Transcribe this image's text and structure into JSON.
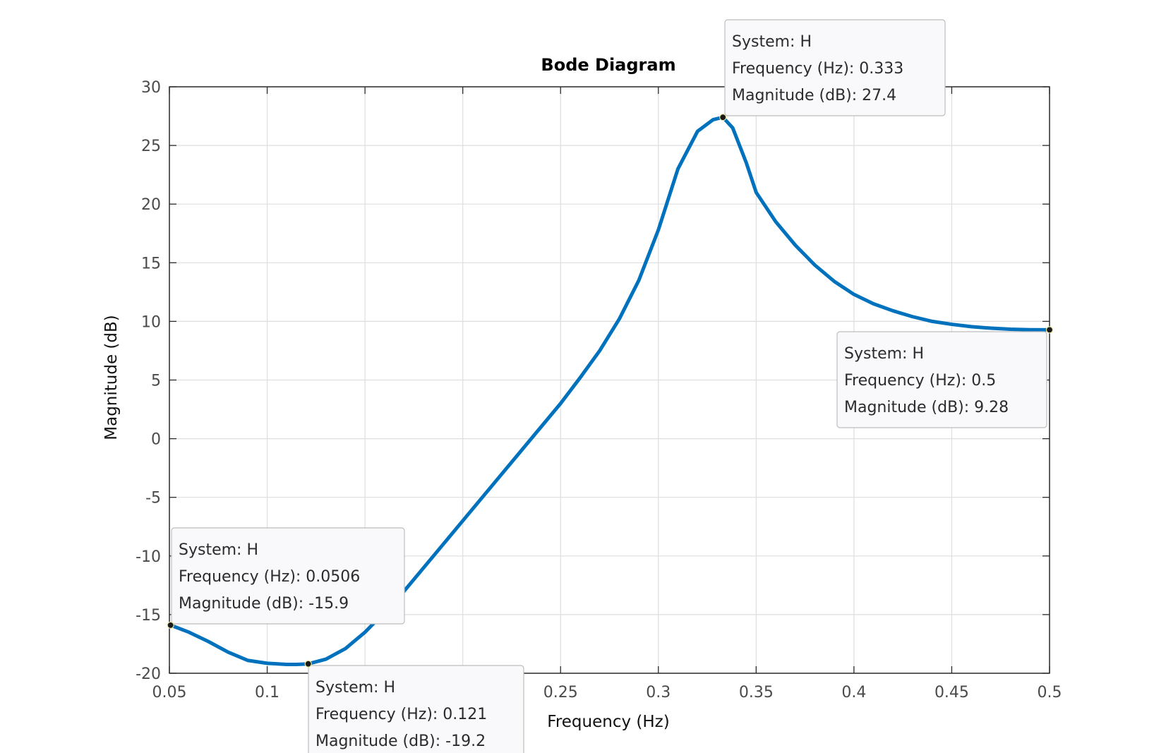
{
  "chart_data": {
    "type": "line",
    "title": "Bode Diagram",
    "xlabel": "Frequency  (Hz)",
    "ylabel": "Magnitude (dB)",
    "xlim": [
      0.05,
      0.5
    ],
    "ylim": [
      -20,
      30
    ],
    "xticks": [
      0.05,
      0.1,
      0.15,
      0.2,
      0.25,
      0.3,
      0.35,
      0.4,
      0.45,
      0.5
    ],
    "xtick_labels": [
      "0.05",
      "0.1",
      "0.15",
      "0.2",
      "0.25",
      "0.3",
      "0.35",
      "0.4",
      "0.45",
      "0.5"
    ],
    "yticks": [
      -20,
      -15,
      -10,
      -5,
      0,
      5,
      10,
      15,
      20,
      25,
      30
    ],
    "ytick_labels": [
      "-20",
      "-15",
      "-10",
      "-5",
      "0",
      "5",
      "10",
      "15",
      "20",
      "25",
      "30"
    ],
    "grid": true,
    "series_color": "#0072BD",
    "series": [
      {
        "x": [
          0.0506,
          0.06,
          0.07,
          0.08,
          0.09,
          0.1,
          0.11,
          0.115,
          0.121,
          0.13,
          0.14,
          0.15,
          0.16,
          0.17,
          0.18,
          0.19,
          0.2,
          0.21,
          0.22,
          0.23,
          0.24,
          0.25,
          0.26,
          0.27,
          0.28,
          0.29,
          0.3,
          0.31,
          0.32,
          0.328,
          0.333,
          0.338,
          0.345,
          0.35,
          0.36,
          0.37,
          0.38,
          0.39,
          0.4,
          0.41,
          0.42,
          0.43,
          0.44,
          0.45,
          0.46,
          0.47,
          0.48,
          0.49,
          0.5
        ],
        "y": [
          -15.9,
          -16.5,
          -17.3,
          -18.2,
          -18.9,
          -19.15,
          -19.25,
          -19.25,
          -19.2,
          -18.8,
          -17.9,
          -16.5,
          -14.8,
          -13.0,
          -11.0,
          -9.0,
          -7.0,
          -5.0,
          -3.0,
          -1.0,
          1.0,
          3.0,
          5.2,
          7.5,
          10.2,
          13.5,
          17.8,
          23.0,
          26.2,
          27.2,
          27.4,
          26.5,
          23.5,
          21.0,
          18.5,
          16.5,
          14.8,
          13.4,
          12.3,
          11.5,
          10.9,
          10.4,
          10.0,
          9.75,
          9.55,
          9.42,
          9.33,
          9.29,
          9.28
        ]
      }
    ],
    "datatips": [
      {
        "system": "System: H",
        "freq": "Frequency (Hz): 0.0506",
        "mag": "Magnitude (dB): -15.9",
        "x": 0.0506,
        "y": -15.9
      },
      {
        "system": "System: H",
        "freq": "Frequency (Hz): 0.121",
        "mag": "Magnitude (dB): -19.2",
        "x": 0.121,
        "y": -19.2
      },
      {
        "system": "System: H",
        "freq": "Frequency (Hz): 0.333",
        "mag": "Magnitude (dB): 27.4",
        "x": 0.333,
        "y": 27.4
      },
      {
        "system": "System: H",
        "freq": "Frequency (Hz): 0.5",
        "mag": "Magnitude (dB): 9.28",
        "x": 0.5,
        "y": 9.28
      }
    ]
  }
}
